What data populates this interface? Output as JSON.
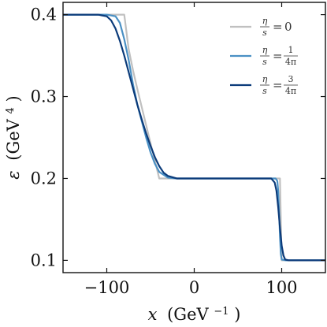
{
  "chart_data": {
    "type": "line",
    "xlabel": "x (GeV⁻¹)",
    "ylabel": "ε (GeV⁴)",
    "xlabel_parts": {
      "var": "x",
      "unit": "(GeV",
      "exp": "−1",
      "close": ")"
    },
    "ylabel_parts": {
      "var": "ε",
      "unit": "(GeV",
      "exp": "4",
      "close": ")"
    },
    "xlim": [
      -150,
      150
    ],
    "ylim": [
      0.085,
      0.415
    ],
    "x_ticks": [
      -100,
      0,
      100
    ],
    "x_tick_labels": [
      "−100",
      "0",
      "100"
    ],
    "y_ticks": [
      0.1,
      0.2,
      0.3,
      0.4
    ],
    "y_tick_labels": [
      "0.1",
      "0.2",
      "0.3",
      "0.4"
    ],
    "grid": false,
    "legend_position": "top-right",
    "series": [
      {
        "name": "η/s = 0",
        "legend": {
          "num": "η",
          "den": "s",
          "rhs_num": "",
          "rhs_den": "",
          "rhs": "0"
        },
        "color": "#c0c0c0",
        "x": [
          -150,
          -100,
          -80,
          -75,
          -70,
          -65,
          -60,
          -55,
          -50,
          -45,
          -40,
          -20,
          0,
          50,
          90,
          94,
          96,
          98,
          100,
          150
        ],
        "y": [
          0.4,
          0.4,
          0.4,
          0.358,
          0.332,
          0.309,
          0.287,
          0.265,
          0.243,
          0.222,
          0.2,
          0.2,
          0.2,
          0.2,
          0.2,
          0.2,
          0.2,
          0.2,
          0.1,
          0.1
        ]
      },
      {
        "name": "η/s = 1/4π",
        "legend": {
          "num": "η",
          "den": "s",
          "rhs_num": "1",
          "rhs_den": "4π",
          "rhs": ""
        },
        "color": "#4a90c4",
        "x": [
          -150,
          -100,
          -90,
          -85,
          -80,
          -75,
          -70,
          -65,
          -60,
          -55,
          -50,
          -45,
          -40,
          -30,
          -20,
          0,
          50,
          90,
          93,
          95,
          96,
          97,
          98,
          99,
          100,
          105,
          150
        ],
        "y": [
          0.4,
          0.4,
          0.398,
          0.39,
          0.37,
          0.345,
          0.315,
          0.29,
          0.27,
          0.25,
          0.232,
          0.218,
          0.208,
          0.201,
          0.2,
          0.2,
          0.2,
          0.2,
          0.2,
          0.197,
          0.185,
          0.16,
          0.13,
          0.108,
          0.101,
          0.1,
          0.1
        ]
      },
      {
        "name": "η/s = 3/4π",
        "legend": {
          "num": "η",
          "den": "s",
          "rhs_num": "3",
          "rhs_den": "4π",
          "rhs": ""
        },
        "color": "#0b3b7a",
        "x": [
          -150,
          -110,
          -100,
          -95,
          -90,
          -85,
          -80,
          -75,
          -70,
          -65,
          -60,
          -55,
          -50,
          -45,
          -40,
          -35,
          -30,
          -20,
          0,
          50,
          88,
          92,
          94,
          96,
          98,
          100,
          102,
          104,
          108,
          150
        ],
        "y": [
          0.4,
          0.4,
          0.398,
          0.393,
          0.383,
          0.368,
          0.35,
          0.33,
          0.31,
          0.29,
          0.272,
          0.255,
          0.24,
          0.226,
          0.215,
          0.207,
          0.203,
          0.2,
          0.2,
          0.2,
          0.2,
          0.195,
          0.185,
          0.165,
          0.14,
          0.118,
          0.106,
          0.101,
          0.1,
          0.1
        ]
      }
    ]
  }
}
